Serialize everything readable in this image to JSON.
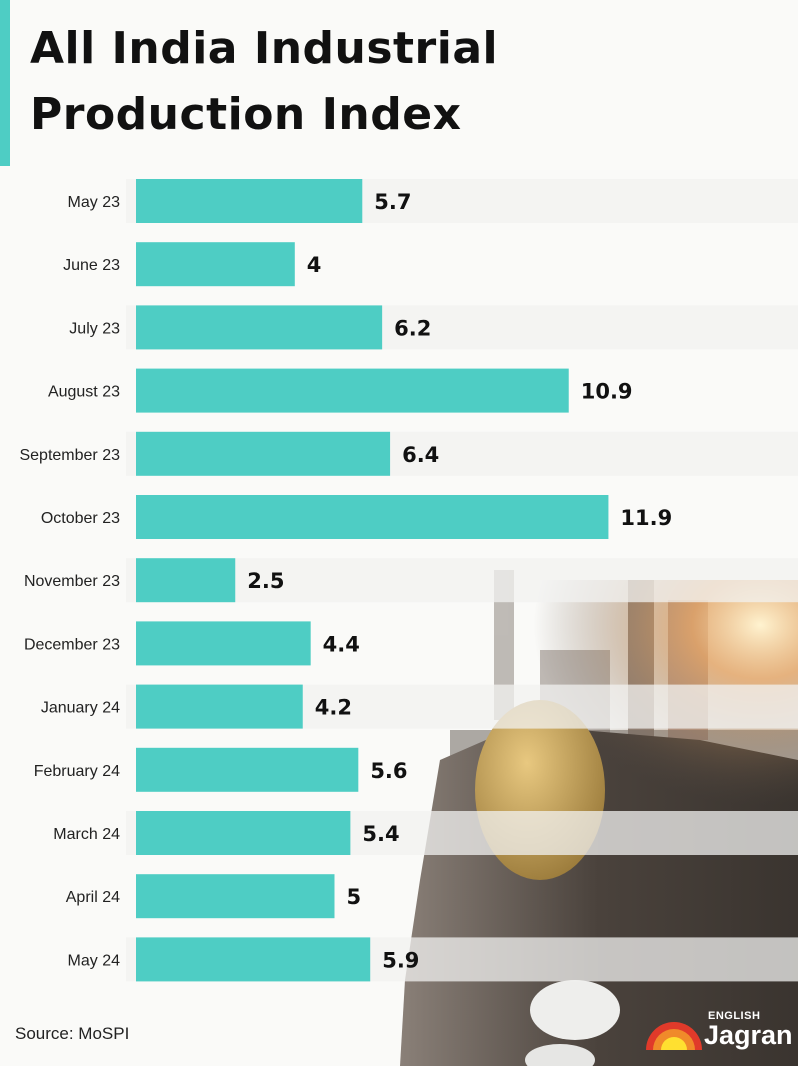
{
  "title": {
    "line1": "All India Industrial",
    "line2": "Production Index"
  },
  "source": "Source: MoSPI",
  "logo": {
    "small": "ENGLISH",
    "brand": "Jagran"
  },
  "colors": {
    "bar": "#4ecdc4",
    "accent": "#4ecdc4",
    "stripe": "#f1f1f0",
    "background": "#fafaf8"
  },
  "chart_data": {
    "type": "bar",
    "orientation": "horizontal",
    "categories": [
      "May 23",
      "June 23",
      "July 23",
      "August 23",
      "September 23",
      "October 23",
      "November 23",
      "December 23",
      "January 24",
      "February 24",
      "March 24",
      "April 24",
      "May 24"
    ],
    "values": [
      5.7,
      4,
      6.2,
      10.9,
      6.4,
      11.9,
      2.5,
      4.4,
      4.2,
      5.6,
      5.4,
      5,
      5.9
    ],
    "value_labels": [
      "5.7",
      "4",
      "6.2",
      "10.9",
      "6.4",
      "11.9",
      "2.5",
      "4.4",
      "4.2",
      "5.6",
      "5.4",
      "5",
      "5.9"
    ],
    "title": "All India Industrial Production Index",
    "xlabel": "",
    "ylabel": "",
    "grid": false
  }
}
